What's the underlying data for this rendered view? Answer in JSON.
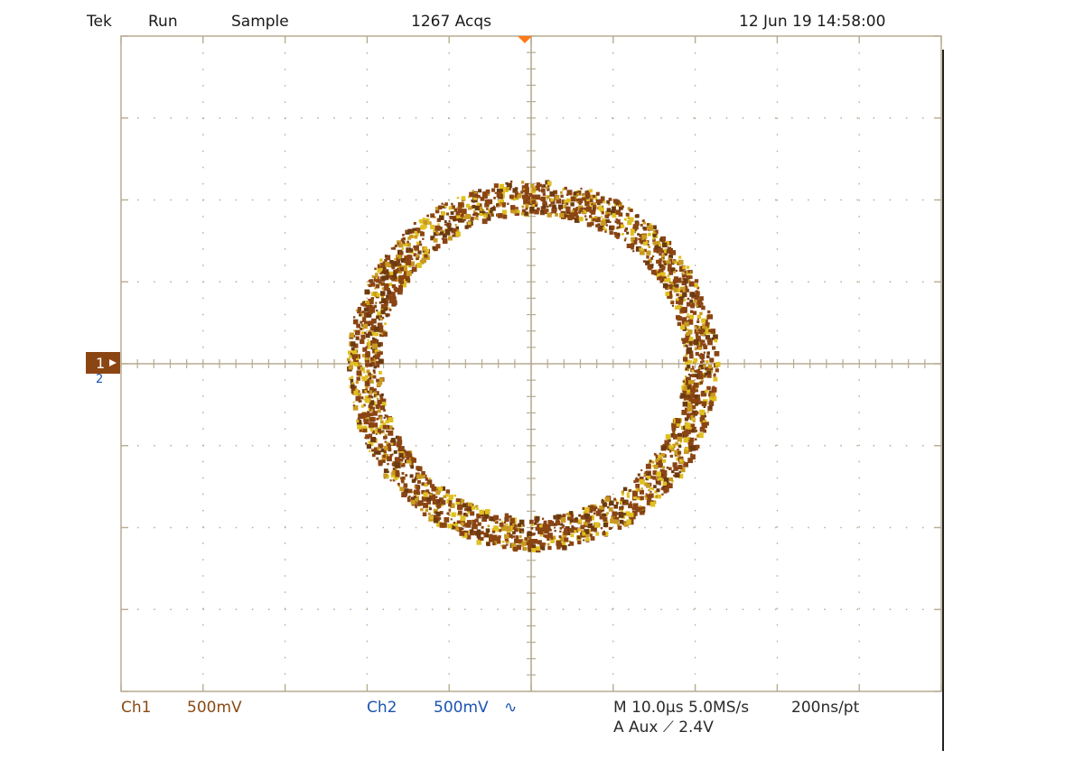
{
  "status_bar": {
    "brand": "Tek",
    "run_state": "Run",
    "acq_mode": "Sample",
    "acq_count": "1267 Acqs",
    "timestamp": "12 Jun 19 14:58:00"
  },
  "markers": {
    "ch1_marker": "1",
    "ch2_marker": "2"
  },
  "readout": {
    "ch1_name": "Ch1",
    "ch1_scale": "500mV",
    "ch2_name": "Ch2",
    "ch2_scale": "500mV",
    "ch2_bw_symbol": "∿",
    "timebase": "M 10.0µs 5.0MS/s",
    "record": "200ns/pt",
    "trigger": "A  Aux  ⟋  2.4V"
  },
  "colors": {
    "graticule": "#b8ab92",
    "trace_dark": "#8b4513",
    "trace_light": "#e0c020",
    "ch1": "#8a4a14",
    "ch2": "#1a55b0",
    "trigger_marker": "#ff7a1a"
  },
  "chart_data": {
    "type": "scatter",
    "mode": "XY",
    "description_shape": "ring",
    "x_divisions": 10,
    "y_divisions": 8,
    "xlim": [
      -5,
      5
    ],
    "ylim": [
      -4,
      4
    ],
    "trace": {
      "center": [
        0,
        0
      ],
      "radius_div": 2.05,
      "band_width_div": 0.4
    }
  }
}
